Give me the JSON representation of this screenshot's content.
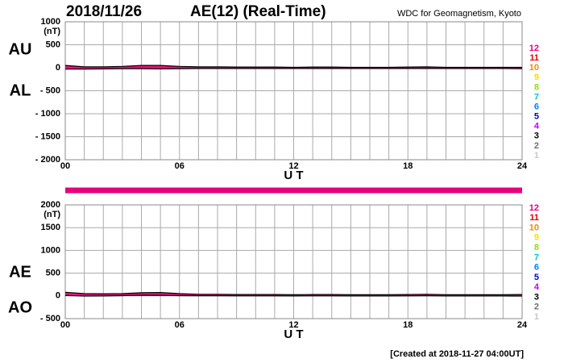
{
  "header": {
    "date": "2018/11/26",
    "title": "AE(12) (Real-Time)",
    "source": "WDC for Geomagnetism, Kyoto"
  },
  "footer": "[Created at 2018-11-27 04:00UT]",
  "station_legend": [
    {
      "label": "12",
      "color": "#e6007e"
    },
    {
      "label": "11",
      "color": "#e00000"
    },
    {
      "label": "10",
      "color": "#f08c00"
    },
    {
      "label": "9",
      "color": "#f0e000"
    },
    {
      "label": "8",
      "color": "#90e000"
    },
    {
      "label": "7",
      "color": "#00c8c8"
    },
    {
      "label": "6",
      "color": "#0080ff"
    },
    {
      "label": "5",
      "color": "#0000c0"
    },
    {
      "label": "4",
      "color": "#c000ff"
    },
    {
      "label": "3",
      "color": "#000000"
    },
    {
      "label": "2",
      "color": "#707070"
    },
    {
      "label": "1",
      "color": "#c8c8c8"
    }
  ],
  "chart_data": [
    {
      "type": "line",
      "xlabel": "U T",
      "ylabel": "(nT)",
      "x": [
        0,
        1,
        2,
        3,
        4,
        5,
        6,
        7,
        8,
        9,
        10,
        11,
        12,
        13,
        14,
        15,
        16,
        17,
        18,
        19,
        20,
        21,
        22,
        23,
        24
      ],
      "xlim": [
        0,
        24
      ],
      "xticks": [
        {
          "value": 0,
          "label": "00"
        },
        {
          "value": 6,
          "label": "06"
        },
        {
          "value": 12,
          "label": "12"
        },
        {
          "value": 18,
          "label": "18"
        },
        {
          "value": 24,
          "label": "24"
        }
      ],
      "minor_xticks": [
        0,
        1,
        2,
        3,
        4,
        5,
        6,
        7,
        8,
        9,
        10,
        11,
        12,
        13,
        14,
        15,
        16,
        17,
        18,
        19,
        20,
        21,
        22,
        23,
        24
      ],
      "ylim": [
        -2000,
        1000
      ],
      "yticks": [
        1000,
        500,
        0,
        {
          "value": -500,
          "label": "- 500"
        },
        {
          "value": -1000,
          "label": "- 1000"
        },
        {
          "value": -1500,
          "label": "- 1500"
        },
        {
          "value": -2000,
          "label": "- 2000"
        }
      ],
      "grid": true,
      "fill": "#e8137a",
      "series": [
        {
          "name": "AU",
          "color": "#000000",
          "values": [
            50,
            20,
            20,
            30,
            50,
            50,
            30,
            20,
            20,
            15,
            15,
            15,
            10,
            15,
            15,
            10,
            10,
            10,
            15,
            20,
            10,
            10,
            10,
            10,
            10
          ]
        },
        {
          "name": "AL",
          "color": "#000000",
          "values": [
            -30,
            -30,
            -25,
            -20,
            -20,
            -25,
            -20,
            -15,
            -15,
            -15,
            -15,
            -15,
            -15,
            -15,
            -15,
            -15,
            -15,
            -15,
            -15,
            -15,
            -15,
            -15,
            -15,
            -15,
            -20
          ]
        }
      ]
    },
    {
      "type": "line",
      "xlabel": "U T",
      "ylabel": "(nT)",
      "x": [
        0,
        1,
        2,
        3,
        4,
        5,
        6,
        7,
        8,
        9,
        10,
        11,
        12,
        13,
        14,
        15,
        16,
        17,
        18,
        19,
        20,
        21,
        22,
        23,
        24
      ],
      "xlim": [
        0,
        24
      ],
      "xticks": [
        {
          "value": 0,
          "label": "00"
        },
        {
          "value": 6,
          "label": "06"
        },
        {
          "value": 12,
          "label": "12"
        },
        {
          "value": 18,
          "label": "18"
        },
        {
          "value": 24,
          "label": "24"
        }
      ],
      "minor_xticks": [
        0,
        1,
        2,
        3,
        4,
        5,
        6,
        7,
        8,
        9,
        10,
        11,
        12,
        13,
        14,
        15,
        16,
        17,
        18,
        19,
        20,
        21,
        22,
        23,
        24
      ],
      "ylim": [
        -500,
        2000
      ],
      "yticks": [
        2000,
        1500,
        1000,
        500,
        0,
        {
          "value": -500,
          "label": "- 500"
        }
      ],
      "grid": true,
      "fill": "#e8137a",
      "coverage": {
        "start": 0,
        "end": 24,
        "stations": 12
      },
      "series": [
        {
          "name": "AE",
          "color": "#000000",
          "values": [
            80,
            50,
            45,
            50,
            70,
            75,
            50,
            35,
            35,
            30,
            30,
            30,
            25,
            30,
            30,
            25,
            25,
            25,
            30,
            35,
            25,
            25,
            25,
            25,
            30
          ]
        },
        {
          "name": "AO",
          "color": "#000000",
          "values": [
            10,
            -5,
            -2,
            5,
            15,
            12,
            5,
            2,
            2,
            0,
            0,
            0,
            -2,
            0,
            0,
            -2,
            -2,
            -2,
            0,
            2,
            -2,
            -2,
            -2,
            -2,
            -5
          ]
        }
      ]
    }
  ]
}
